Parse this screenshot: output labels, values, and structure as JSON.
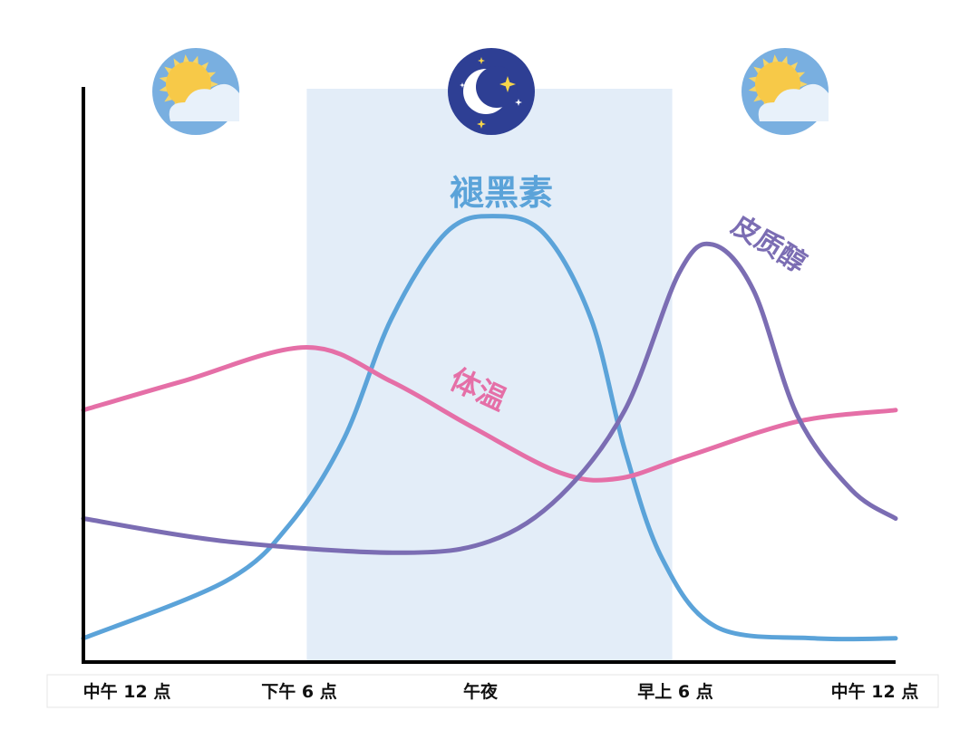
{
  "chart_data": {
    "type": "line",
    "title": "",
    "xlabel": "",
    "ylabel": "",
    "x_unit_note_hidden": null,
    "xlim": [
      0,
      24
    ],
    "ylim": [
      0,
      100
    ],
    "grid": false,
    "x_ticks": [
      0,
      6,
      12,
      18,
      24
    ],
    "tick_labels": [
      "中午 12 点",
      "下午 6 点",
      "午夜",
      "早上 6 点",
      "中午 12 点"
    ],
    "night_band": [
      6.6,
      17.4
    ],
    "series": [
      {
        "name": "褪黑素",
        "color": "#5ba3d9",
        "points": [
          [
            0,
            4
          ],
          [
            4.2,
            14
          ],
          [
            6.1,
            24
          ],
          [
            7.7,
            39
          ],
          [
            9.1,
            60
          ],
          [
            10.7,
            75
          ],
          [
            12.1,
            78
          ],
          [
            13.6,
            75
          ],
          [
            15,
            60
          ],
          [
            16,
            37
          ],
          [
            17.1,
            18
          ],
          [
            18.7,
            6
          ],
          [
            21.6,
            4
          ],
          [
            24,
            4
          ]
        ]
      },
      {
        "name": "体温",
        "color": "#e56fa7",
        "points": [
          [
            0,
            44
          ],
          [
            2.9,
            49
          ],
          [
            6.6,
            55
          ],
          [
            9.1,
            49
          ],
          [
            11.5,
            41
          ],
          [
            14.1,
            33
          ],
          [
            15.8,
            32
          ],
          [
            17.9,
            36
          ],
          [
            21.1,
            42
          ],
          [
            24,
            44
          ]
        ]
      },
      {
        "name": "皮质醇",
        "color": "#7b6db3",
        "points": [
          [
            0,
            25
          ],
          [
            4.2,
            21
          ],
          [
            9.3,
            19
          ],
          [
            12,
            21
          ],
          [
            14.1,
            29
          ],
          [
            16,
            44
          ],
          [
            17.6,
            68
          ],
          [
            18.6,
            73
          ],
          [
            19.8,
            65
          ],
          [
            21.1,
            43
          ],
          [
            22.7,
            30
          ],
          [
            24,
            25
          ]
        ]
      }
    ],
    "icons": [
      "sun-cloud-icon",
      "moon-stars-icon",
      "sun-cloud-icon"
    ],
    "colors": {
      "night_band": "#e3edf8",
      "axis": "#000000",
      "sky": "#79afe0",
      "sun": "#f7c948",
      "night": "#2e3f94"
    }
  }
}
